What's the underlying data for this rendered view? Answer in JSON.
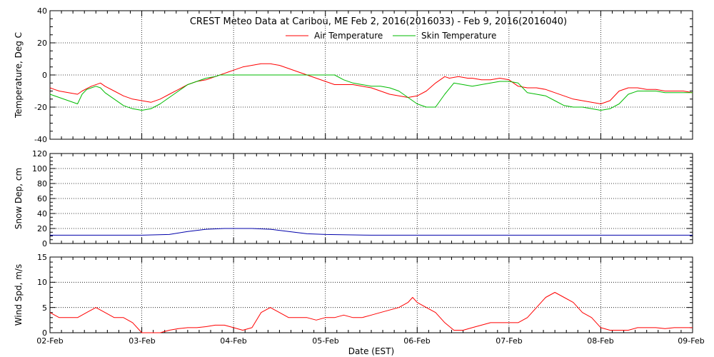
{
  "colors": {
    "air": "#ff0000",
    "skin": "#00bb00",
    "snow": "#0000aa",
    "wind": "#ff0000",
    "axis": "#000000"
  },
  "chart_data": [
    {
      "type": "line",
      "title": "CREST Meteo Data at Caribou, ME   Feb  2, 2016(2016033) - Feb  9, 2016(2016040)",
      "ylabel": "Temperature, Deg C",
      "ylim": [
        -40,
        40
      ],
      "yticks": [
        "40",
        "20",
        "0",
        "-20",
        "-40"
      ],
      "legend_position": "top-center",
      "grid": true,
      "x_range_days": [
        0,
        7
      ],
      "series": [
        {
          "name": "Air Temperature",
          "color_key": "air",
          "x": [
            0,
            0.05,
            0.1,
            0.2,
            0.3,
            0.35,
            0.45,
            0.55,
            0.6,
            0.7,
            0.8,
            0.9,
            1.0,
            1.1,
            1.2,
            1.3,
            1.4,
            1.5,
            1.6,
            1.7,
            1.75,
            1.8,
            1.85,
            1.9,
            1.95,
            2.0,
            2.1,
            2.2,
            2.3,
            2.4,
            2.5,
            2.6,
            2.7,
            2.8,
            2.9,
            3.0,
            3.1,
            3.2,
            3.3,
            3.4,
            3.5,
            3.6,
            3.7,
            3.8,
            3.9,
            4.0,
            4.1,
            4.2,
            4.3,
            4.35,
            4.45,
            4.55,
            4.6,
            4.7,
            4.8,
            4.9,
            5.0,
            5.1,
            5.2,
            5.3,
            5.4,
            5.5,
            5.6,
            5.7,
            5.8,
            5.9,
            6.0,
            6.1,
            6.2,
            6.3,
            6.4,
            6.5,
            6.6,
            6.7,
            6.8,
            6.9,
            7.0
          ],
          "values": [
            -8,
            -9,
            -10,
            -11,
            -12,
            -10,
            -7,
            -5,
            -7,
            -10,
            -13,
            -15,
            -16,
            -17,
            -15,
            -12,
            -9,
            -6,
            -4,
            -3,
            -2,
            -1,
            0,
            1,
            2,
            3,
            5,
            6,
            7,
            7,
            6,
            4,
            2,
            0,
            -2,
            -4,
            -6,
            -6,
            -6,
            -7,
            -8,
            -10,
            -12,
            -13,
            -14,
            -13,
            -10,
            -5,
            -1,
            -2,
            -1,
            -2,
            -2,
            -3,
            -3,
            -2,
            -3,
            -7,
            -8,
            -8,
            -9,
            -11,
            -13,
            -15,
            -16,
            -17,
            -18,
            -16,
            -10,
            -8,
            -8,
            -9,
            -9,
            -10,
            -10,
            -10,
            -11
          ]
        },
        {
          "name": "Skin Temperature",
          "color_key": "skin",
          "x": [
            0,
            0.1,
            0.2,
            0.3,
            0.35,
            0.4,
            0.45,
            0.5,
            0.55,
            0.6,
            0.7,
            0.8,
            0.9,
            1.0,
            1.1,
            1.2,
            1.3,
            1.4,
            1.5,
            1.6,
            1.7,
            1.8,
            1.85,
            1.9,
            2.0,
            2.2,
            2.4,
            2.6,
            2.8,
            2.9,
            3.0,
            3.1,
            3.2,
            3.3,
            3.4,
            3.5,
            3.6,
            3.7,
            3.8,
            3.9,
            4.0,
            4.1,
            4.2,
            4.3,
            4.4,
            4.5,
            4.6,
            4.7,
            4.8,
            4.9,
            5.0,
            5.1,
            5.2,
            5.3,
            5.4,
            5.5,
            5.6,
            5.7,
            5.8,
            5.9,
            6.0,
            6.1,
            6.2,
            6.3,
            6.4,
            6.5,
            6.6,
            6.7,
            6.8,
            6.9,
            7.0
          ],
          "values": [
            -12,
            -14,
            -16,
            -18,
            -12,
            -9,
            -8,
            -7,
            -8,
            -11,
            -15,
            -19,
            -21,
            -22,
            -21,
            -18,
            -14,
            -10,
            -6,
            -4,
            -2,
            -1,
            0,
            0,
            0,
            0,
            0,
            0,
            0,
            0,
            0,
            0,
            -3,
            -5,
            -6,
            -7,
            -7,
            -8,
            -10,
            -14,
            -18,
            -20,
            -20,
            -12,
            -5,
            -6,
            -7,
            -6,
            -5,
            -4,
            -4,
            -5,
            -11,
            -12,
            -13,
            -16,
            -19,
            -20,
            -20,
            -21,
            -22,
            -21,
            -18,
            -12,
            -10,
            -10,
            -10,
            -11,
            -11,
            -11,
            -11
          ]
        }
      ]
    },
    {
      "type": "line",
      "ylabel": "Snow Dep, cm",
      "ylim": [
        0,
        120
      ],
      "yticks": [
        "120",
        "100",
        "80",
        "60",
        "40",
        "20",
        "0"
      ],
      "grid": true,
      "series": [
        {
          "color_key": "snow",
          "x": [
            0,
            0.5,
            1.0,
            1.3,
            1.5,
            1.7,
            1.9,
            2.0,
            2.1,
            2.2,
            2.4,
            2.6,
            2.8,
            3.0,
            3.5,
            4.0,
            4.5,
            5.0,
            5.5,
            6.0,
            6.5,
            7.0
          ],
          "values": [
            11,
            11,
            11,
            12,
            16,
            19,
            20,
            20,
            20,
            20,
            19,
            16,
            13,
            12,
            11,
            11,
            11,
            11,
            11,
            11,
            11,
            11
          ]
        }
      ]
    },
    {
      "type": "line",
      "ylabel": "Wind Spd, m/s",
      "ylim": [
        0,
        15
      ],
      "yticks": [
        "15",
        "10",
        "5",
        "0"
      ],
      "xlabel": "Date (EST)",
      "xticks": [
        "02-Feb",
        "03-Feb",
        "04-Feb",
        "05-Feb",
        "06-Feb",
        "07-Feb",
        "08-Feb",
        "09-Feb"
      ],
      "grid": true,
      "series": [
        {
          "color_key": "wind",
          "x": [
            0,
            0.1,
            0.2,
            0.3,
            0.4,
            0.5,
            0.6,
            0.7,
            0.8,
            0.9,
            1.0,
            1.1,
            1.2,
            1.3,
            1.4,
            1.5,
            1.6,
            1.7,
            1.8,
            1.9,
            2.0,
            2.1,
            2.2,
            2.3,
            2.4,
            2.5,
            2.6,
            2.7,
            2.8,
            2.9,
            3.0,
            3.1,
            3.2,
            3.3,
            3.4,
            3.5,
            3.6,
            3.7,
            3.8,
            3.9,
            3.95,
            4.0,
            4.1,
            4.2,
            4.3,
            4.4,
            4.5,
            4.6,
            4.7,
            4.8,
            4.9,
            5.0,
            5.1,
            5.2,
            5.3,
            5.4,
            5.5,
            5.6,
            5.7,
            5.8,
            5.9,
            6.0,
            6.1,
            6.2,
            6.3,
            6.4,
            6.5,
            6.6,
            6.7,
            6.8,
            6.9,
            7.0
          ],
          "values": [
            4,
            3,
            3,
            3,
            4,
            5,
            4,
            3,
            3,
            2,
            0,
            0,
            0,
            0.5,
            0.8,
            1,
            1,
            1.2,
            1.5,
            1.5,
            1,
            0.5,
            1,
            4,
            5,
            4,
            3,
            3,
            3,
            2.5,
            3,
            3,
            3.5,
            3,
            3,
            3.5,
            4,
            4.5,
            5,
            6,
            7,
            6,
            5,
            4,
            2,
            0.5,
            0.5,
            1,
            1.5,
            2,
            2,
            2,
            2,
            3,
            5,
            7,
            8,
            7,
            6,
            4,
            3,
            1,
            0.5,
            0.5,
            0.5,
            1,
            1,
            1,
            0.8,
            1,
            1,
            1
          ]
        }
      ]
    }
  ]
}
